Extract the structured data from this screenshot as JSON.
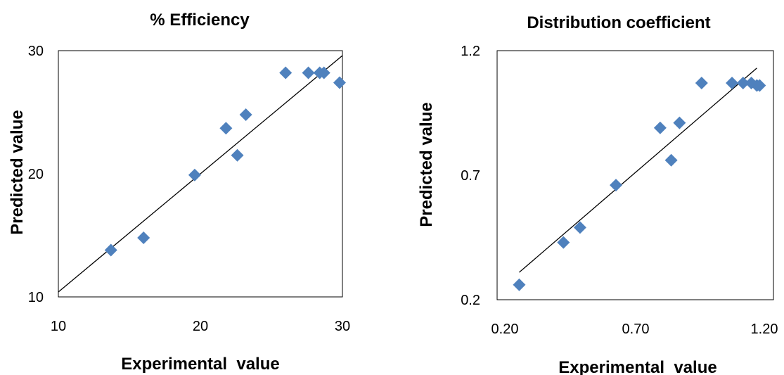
{
  "chart_data": [
    {
      "type": "scatter",
      "title": "% Efficiency",
      "xlabel": "Experimental  value",
      "ylabel": "Predicted value",
      "xlim": [
        10,
        30
      ],
      "ylim": [
        10,
        30
      ],
      "x_ticks": [
        "10",
        "20",
        "30"
      ],
      "y_ticks": [
        "10",
        "20",
        "30"
      ],
      "grid": false,
      "legend": "none",
      "marker": "diamond",
      "marker_color": "#4F81BD",
      "points": [
        {
          "x": 13.7,
          "y": 13.8
        },
        {
          "x": 16.0,
          "y": 14.8
        },
        {
          "x": 19.6,
          "y": 19.9
        },
        {
          "x": 21.8,
          "y": 23.7
        },
        {
          "x": 22.6,
          "y": 21.5
        },
        {
          "x": 23.2,
          "y": 24.8
        },
        {
          "x": 26.0,
          "y": 28.2
        },
        {
          "x": 27.6,
          "y": 28.2
        },
        {
          "x": 28.4,
          "y": 28.2
        },
        {
          "x": 28.7,
          "y": 28.2
        },
        {
          "x": 29.8,
          "y": 27.4
        }
      ],
      "trendline": {
        "x": [
          10,
          30
        ],
        "y": [
          10.4,
          29.6
        ],
        "color": "#000000"
      }
    },
    {
      "type": "scatter",
      "title": "Distribution coefficient",
      "xlabel": "Experimental  value",
      "ylabel": "Predicted value",
      "xlim": [
        0.2,
        1.2
      ],
      "ylim": [
        0.2,
        1.2
      ],
      "x_ticks": [
        "0.20",
        "0.70",
        "1.20"
      ],
      "y_ticks": [
        "0.2",
        "0.7",
        "1.2"
      ],
      "grid": false,
      "legend": "none",
      "marker": "diamond",
      "marker_color": "#4F81BD",
      "points": [
        {
          "x": 0.28,
          "y": 0.26
        },
        {
          "x": 0.44,
          "y": 0.43
        },
        {
          "x": 0.5,
          "y": 0.49
        },
        {
          "x": 0.63,
          "y": 0.66
        },
        {
          "x": 0.79,
          "y": 0.89
        },
        {
          "x": 0.83,
          "y": 0.76
        },
        {
          "x": 0.86,
          "y": 0.91
        },
        {
          "x": 0.94,
          "y": 1.07
        },
        {
          "x": 1.05,
          "y": 1.07
        },
        {
          "x": 1.09,
          "y": 1.07
        },
        {
          "x": 1.12,
          "y": 1.07
        },
        {
          "x": 1.14,
          "y": 1.06
        },
        {
          "x": 1.15,
          "y": 1.06
        }
      ],
      "trendline": {
        "x": [
          0.28,
          1.14
        ],
        "y": [
          0.31,
          1.13
        ],
        "color": "#000000"
      }
    }
  ]
}
